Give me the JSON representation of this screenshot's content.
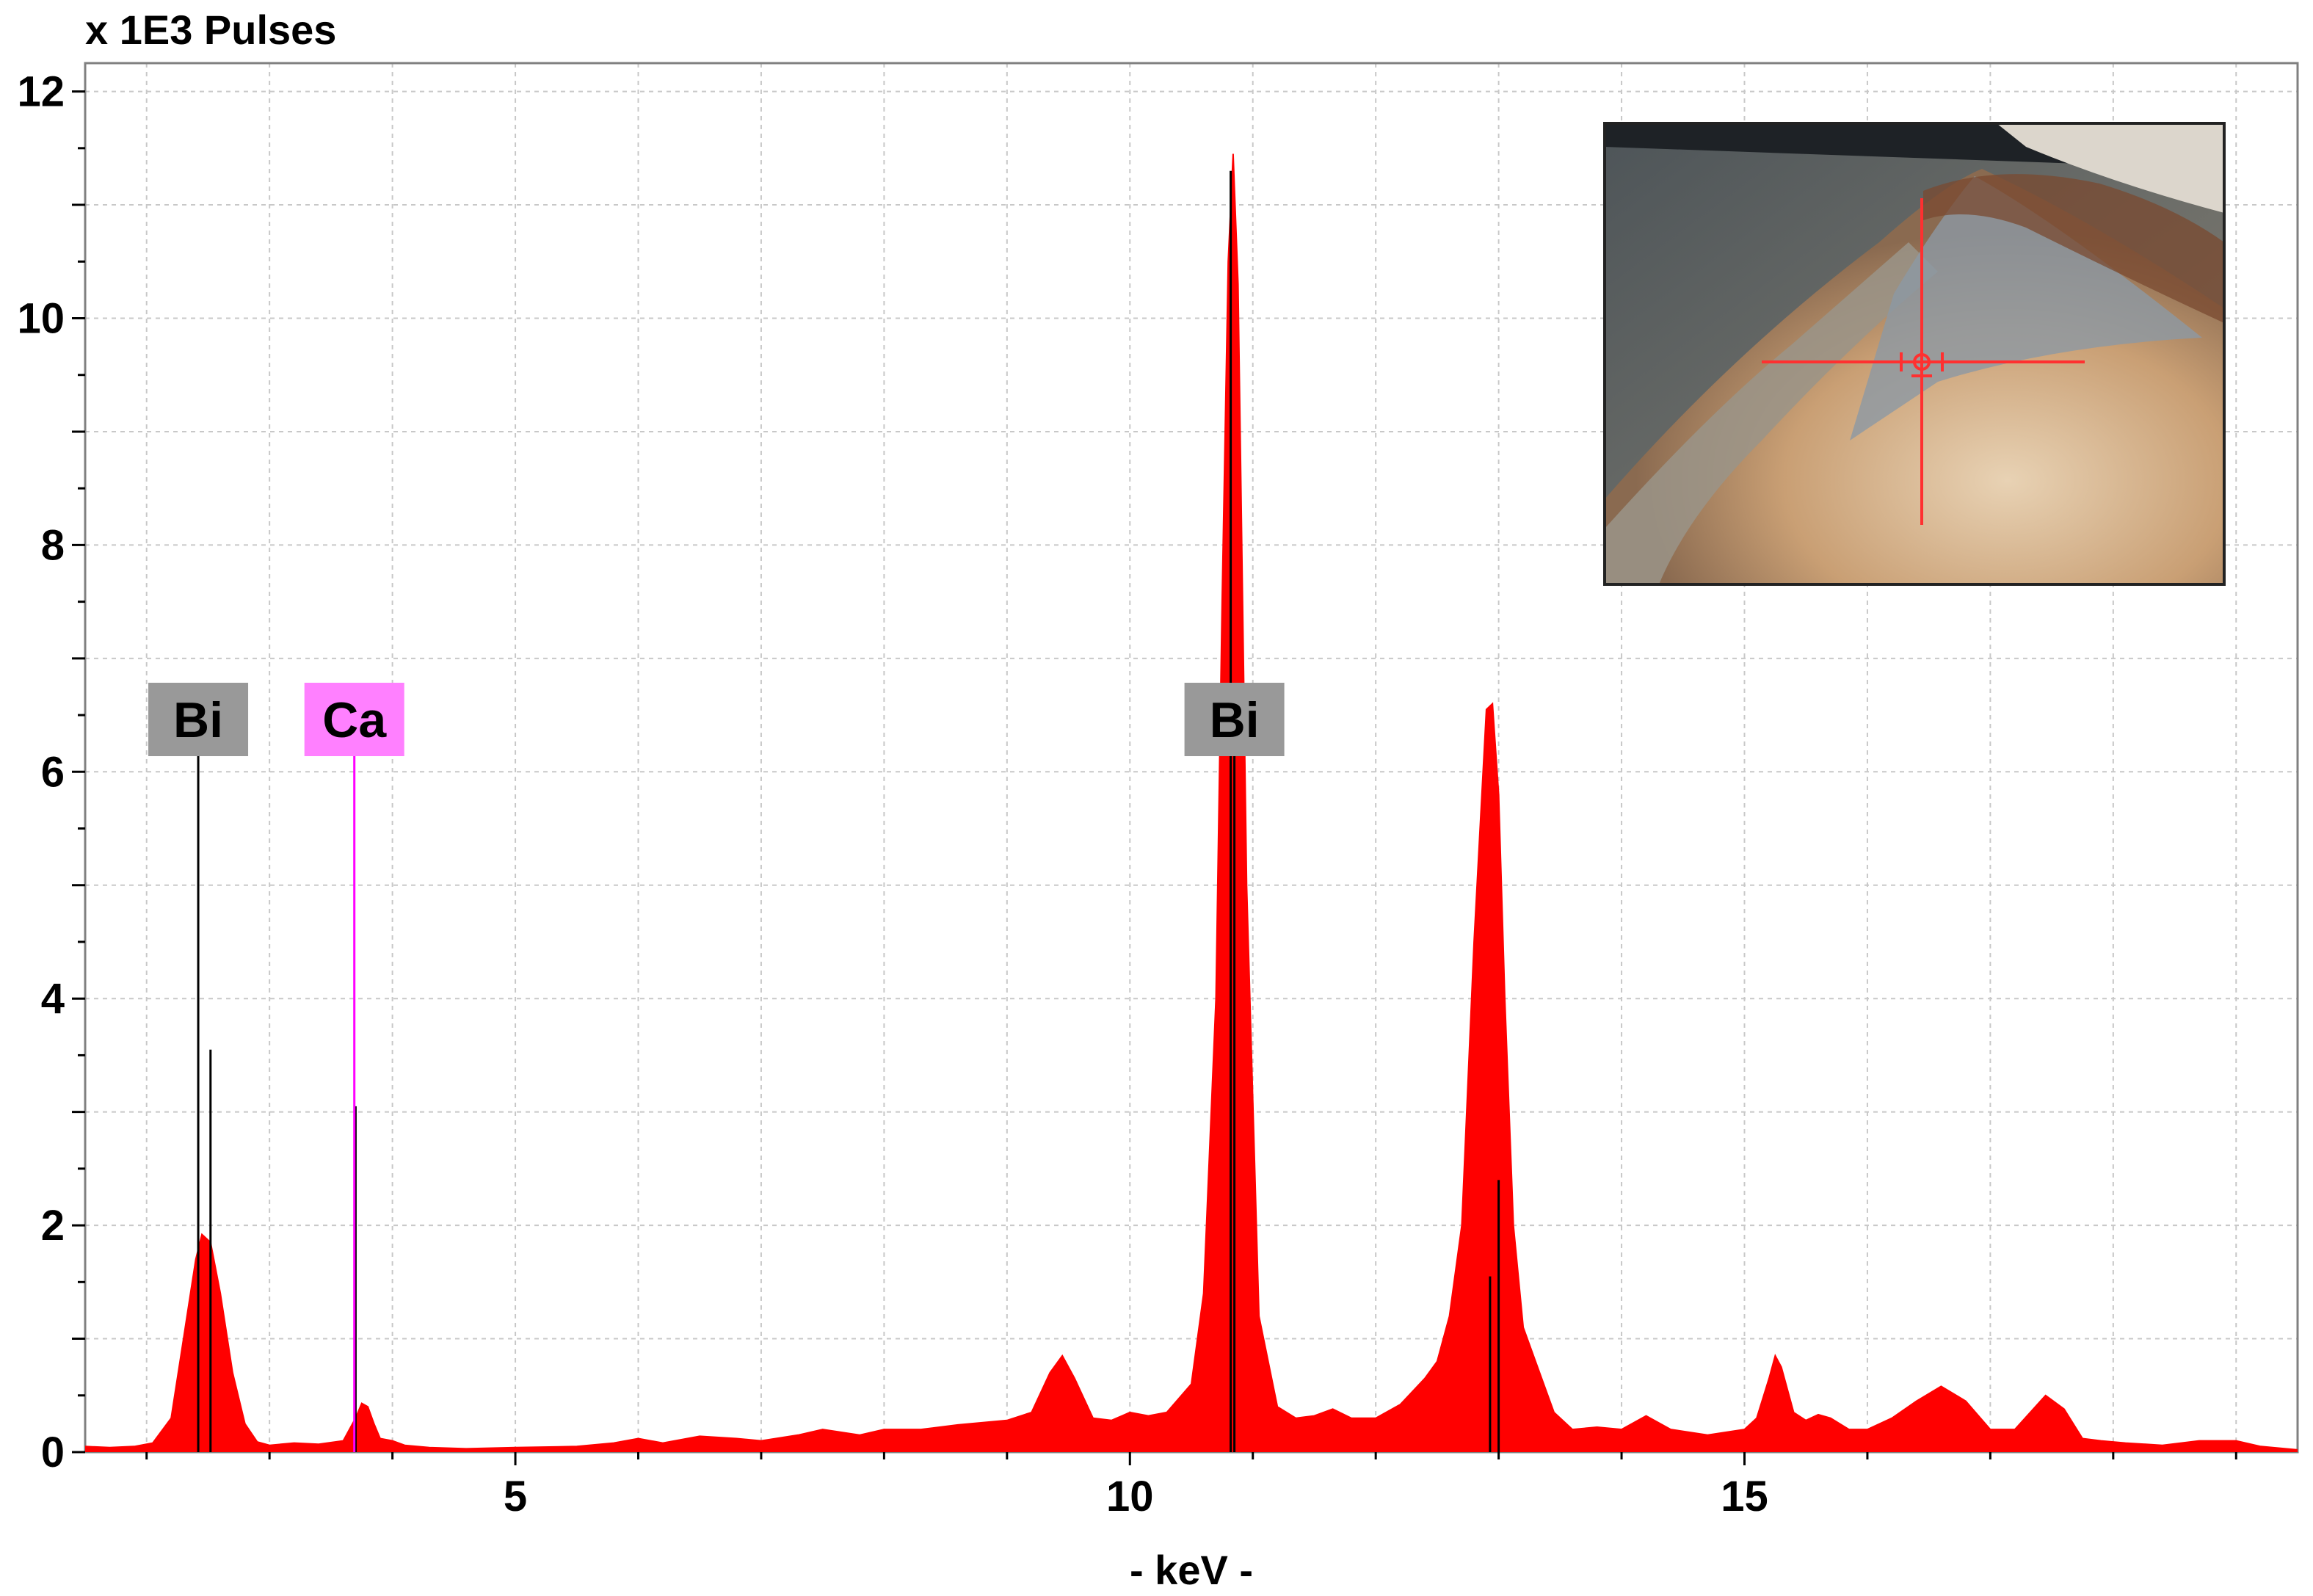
{
  "chart_data": {
    "type": "area",
    "ylabel": "x 1E3 Pulses",
    "xlabel": "- keV -",
    "xlim": [
      1.5,
      19.5
    ],
    "ylim": [
      0,
      12.25
    ],
    "x_ticks": [
      5,
      10,
      15
    ],
    "x_tick_labels": [
      "5",
      "10",
      "15"
    ],
    "y_ticks": [
      0,
      2,
      4,
      6,
      8,
      10,
      12
    ],
    "y_tick_labels": [
      "0",
      "2",
      "4",
      "6",
      "8",
      "10",
      "12"
    ],
    "grid": true,
    "series": [
      {
        "color": "#ff0000",
        "x": [
          1.5,
          1.7,
          1.9,
          2.05,
          2.2,
          2.3,
          2.4,
          2.45,
          2.52,
          2.6,
          2.7,
          2.8,
          2.9,
          3.0,
          3.2,
          3.4,
          3.6,
          3.7,
          3.75,
          3.8,
          3.85,
          3.9,
          4.0,
          4.1,
          4.3,
          4.6,
          5.0,
          5.5,
          5.8,
          6.0,
          6.2,
          6.5,
          6.8,
          7.0,
          7.3,
          7.5,
          7.8,
          8.0,
          8.3,
          8.6,
          9.0,
          9.2,
          9.35,
          9.45,
          9.55,
          9.7,
          9.85,
          10.0,
          10.15,
          10.3,
          10.5,
          10.6,
          10.7,
          10.75,
          10.8,
          10.84,
          10.88,
          10.95,
          11.05,
          11.2,
          11.35,
          11.5,
          11.65,
          11.8,
          12.0,
          12.2,
          12.4,
          12.5,
          12.6,
          12.7,
          12.8,
          12.9,
          12.95,
          13.0,
          13.05,
          13.12,
          13.2,
          13.3,
          13.45,
          13.6,
          13.8,
          14.0,
          14.2,
          14.4,
          14.7,
          15.0,
          15.1,
          15.2,
          15.25,
          15.3,
          15.4,
          15.5,
          15.6,
          15.7,
          15.85,
          16.0,
          16.2,
          16.4,
          16.6,
          16.8,
          17.0,
          17.2,
          17.35,
          17.45,
          17.6,
          17.75,
          17.9,
          18.1,
          18.4,
          18.7,
          19.0,
          19.2,
          19.5
        ],
        "y": [
          0.05,
          0.04,
          0.05,
          0.08,
          0.3,
          1.0,
          1.7,
          1.92,
          1.85,
          1.4,
          0.7,
          0.25,
          0.09,
          0.06,
          0.08,
          0.07,
          0.1,
          0.3,
          0.43,
          0.4,
          0.25,
          0.12,
          0.1,
          0.06,
          0.04,
          0.03,
          0.04,
          0.05,
          0.08,
          0.12,
          0.08,
          0.14,
          0.12,
          0.1,
          0.15,
          0.2,
          0.15,
          0.2,
          0.2,
          0.24,
          0.28,
          0.35,
          0.7,
          0.85,
          0.65,
          0.3,
          0.28,
          0.35,
          0.32,
          0.35,
          0.6,
          1.4,
          4.0,
          7.5,
          10.5,
          11.45,
          10.3,
          5.0,
          1.2,
          0.4,
          0.3,
          0.32,
          0.38,
          0.3,
          0.3,
          0.42,
          0.65,
          0.8,
          1.2,
          2.0,
          4.5,
          6.55,
          6.6,
          5.8,
          4.0,
          2.0,
          1.1,
          0.8,
          0.35,
          0.2,
          0.22,
          0.2,
          0.32,
          0.2,
          0.15,
          0.2,
          0.3,
          0.65,
          0.85,
          0.75,
          0.35,
          0.28,
          0.33,
          0.3,
          0.2,
          0.2,
          0.3,
          0.45,
          0.58,
          0.45,
          0.2,
          0.2,
          0.38,
          0.5,
          0.38,
          0.12,
          0.1,
          0.08,
          0.06,
          0.1,
          0.1,
          0.05,
          0.02
        ]
      }
    ],
    "peak_markers": [
      {
        "x": 2.52,
        "height": 3.55
      },
      {
        "x": 3.7,
        "height": 3.05
      },
      {
        "x": 10.82,
        "height": 11.3
      },
      {
        "x": 13.0,
        "height": 2.4
      },
      {
        "x": 12.93,
        "height": 1.55
      }
    ],
    "element_labels": [
      {
        "text": "Bi",
        "x": 2.42,
        "line_top": 6.15,
        "background": "#999999",
        "line_color": "#000000"
      },
      {
        "text": "Ca",
        "x": 3.69,
        "line_top": 6.15,
        "background": "#ff80ff",
        "line_color": "#ff00ff"
      },
      {
        "text": "Bi",
        "x": 10.85,
        "line_top": 6.15,
        "background": "#999999",
        "line_color": "#000000"
      }
    ],
    "colors": {
      "spectrum": "#ff0000",
      "grid": "#c8c8c8",
      "frame": "#808080"
    }
  },
  "inset_image": {
    "description_icon": "microscope-image-icon",
    "crosshair_color": "#ff3030"
  }
}
